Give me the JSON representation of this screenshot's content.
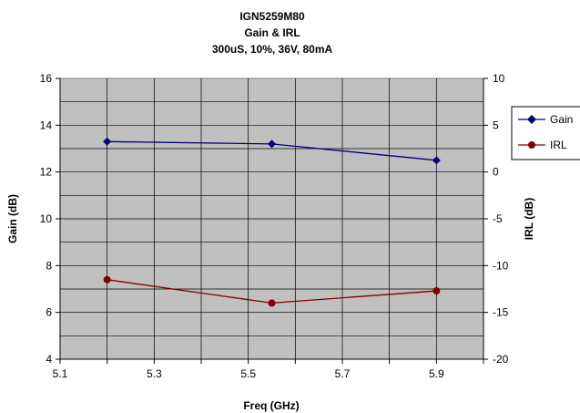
{
  "chart_data": {
    "type": "line",
    "title": [
      "IGN5259M80",
      "Gain & IRL",
      "300uS, 10%, 36V, 80mA"
    ],
    "xlabel": "Freq (GHz)",
    "ylabel": "Gain (dB)",
    "y2label": "IRL (dB)",
    "xlim": [
      5.1,
      6.0
    ],
    "ylim": [
      4,
      16
    ],
    "y2lim": [
      -20,
      10
    ],
    "xticks": [
      "5.1",
      "5.3",
      "5.5",
      "5.7",
      "5.9"
    ],
    "yticks": [
      "4",
      "6",
      "8",
      "10",
      "12",
      "14",
      "16"
    ],
    "y2ticks": [
      "-20",
      "-15",
      "-10",
      "-5",
      "0",
      "5",
      "10"
    ],
    "grid": true,
    "legend": "right",
    "plot_background": "#c0c0c0",
    "series": [
      {
        "name": "Gain",
        "axis": "left",
        "color": "#000080",
        "marker": "diamond",
        "x": [
          5.2,
          5.55,
          5.9
        ],
        "y": [
          13.3,
          13.2,
          12.5
        ]
      },
      {
        "name": "IRL",
        "axis": "right",
        "color": "#800000",
        "marker": "circle",
        "x": [
          5.2,
          5.55,
          5.9
        ],
        "y": [
          -11.5,
          -14.0,
          -12.7
        ]
      }
    ]
  }
}
